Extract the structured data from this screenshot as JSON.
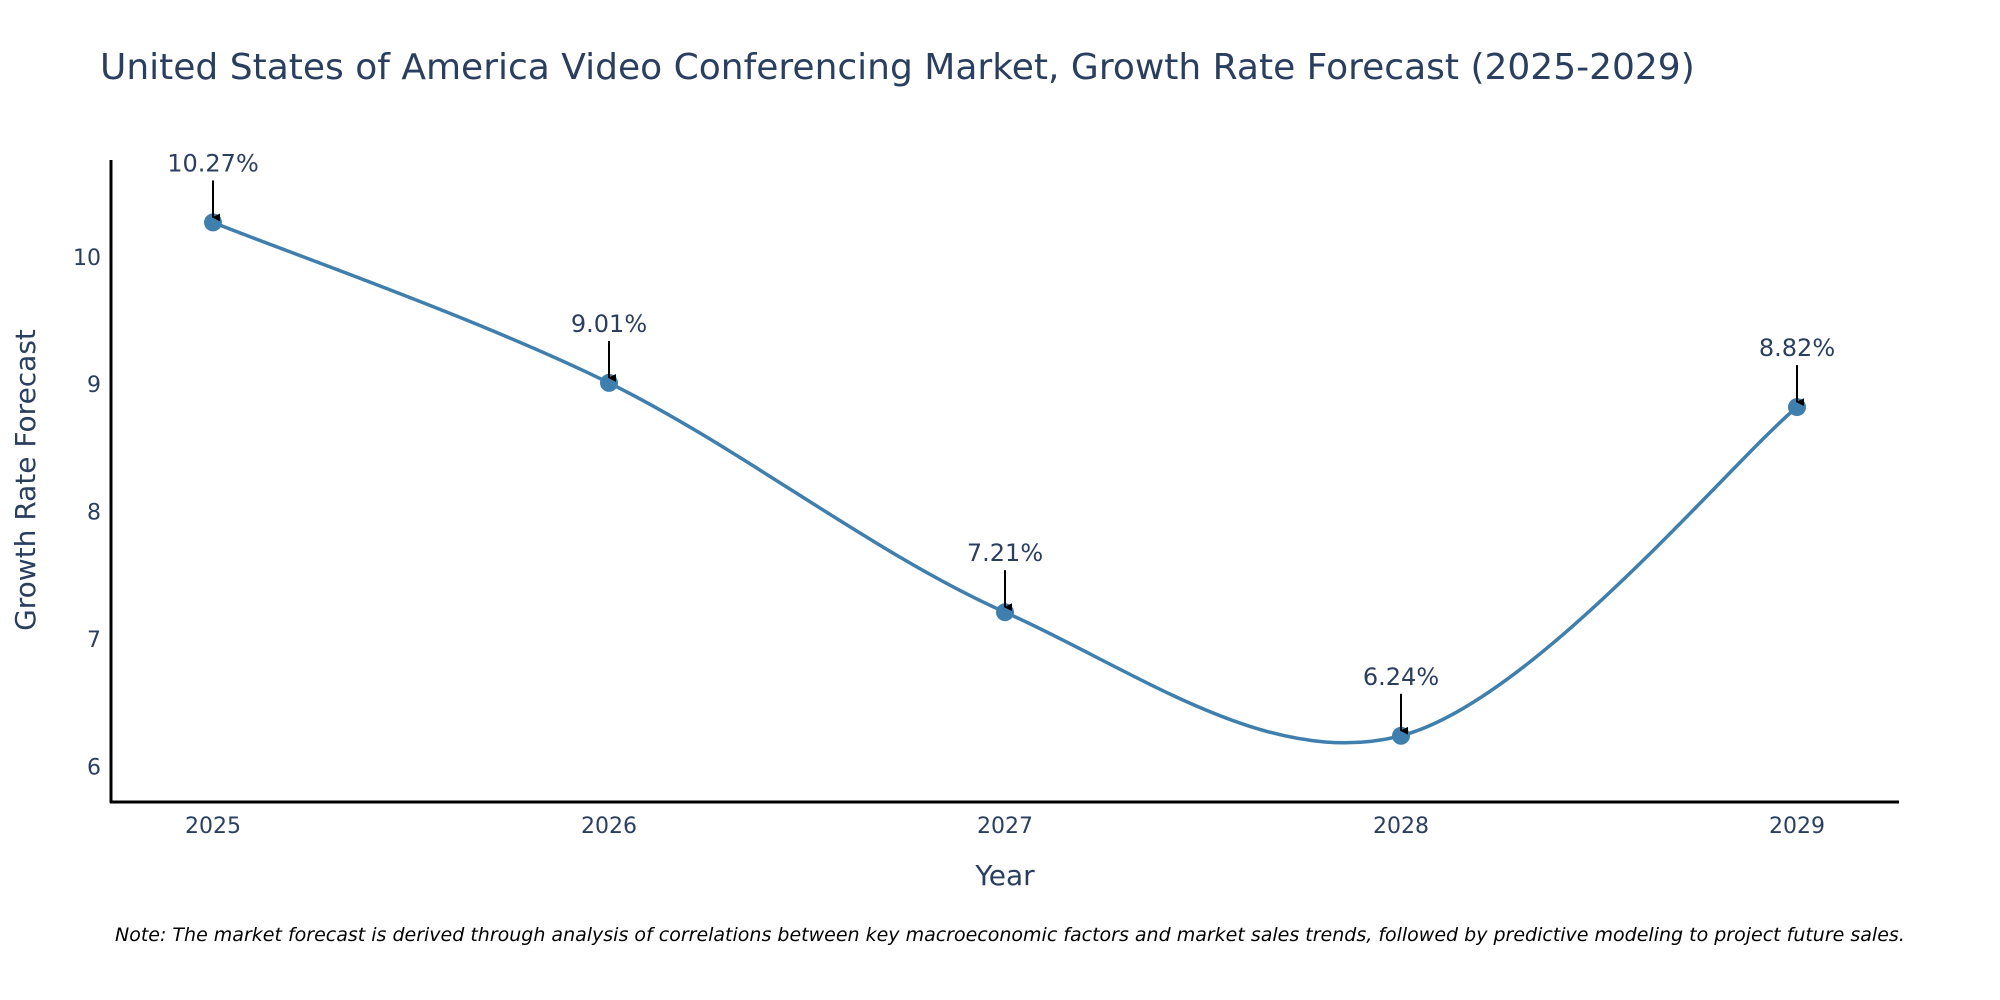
{
  "chart_data": {
    "type": "line",
    "title": "United States of America Video Conferencing Market, Growth Rate Forecast (2025-2029)",
    "xlabel": "Year",
    "ylabel": "Growth Rate Forecast",
    "categories": [
      "2025",
      "2026",
      "2027",
      "2028",
      "2029"
    ],
    "values": [
      10.27,
      9.01,
      7.21,
      6.24,
      8.82
    ],
    "data_labels": [
      "10.27%",
      "9.01%",
      "7.21%",
      "6.24%",
      "8.82%"
    ],
    "y_ticks": [
      "6",
      "7",
      "8",
      "9",
      "10"
    ],
    "ylim": [
      5.72,
      10.76
    ],
    "line_color": "#3f7fad",
    "marker_color": "#3f7fad",
    "grid": false,
    "note": "Note: The market forecast is derived through analysis of correlations between key macroeconomic factors and market sales trends, followed by predictive modeling to project future sales."
  }
}
